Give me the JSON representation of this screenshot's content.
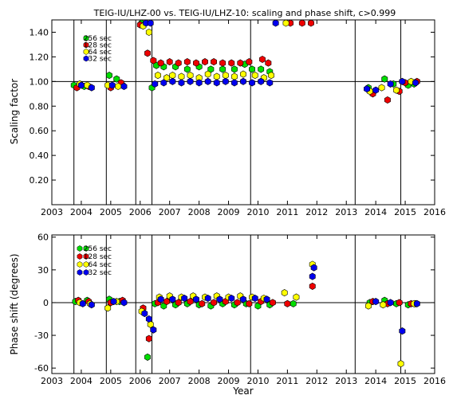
{
  "chart_data": [
    {
      "type": "scatter",
      "title": "TEIG-IU/LHZ-00 vs. TEIG-IU/LHZ-10: scaling and phase shift, c>0.999",
      "xlabel": "",
      "ylabel": "Scaling factor",
      "xlim": [
        2003.0,
        2016.0
      ],
      "ylim": [
        0.0,
        1.5
      ],
      "x_ticks": [
        2003,
        2004,
        2005,
        2006,
        2007,
        2008,
        2009,
        2010,
        2011,
        2012,
        2013,
        2014,
        2015,
        2016
      ],
      "y_ticks": [
        0.2,
        0.4,
        0.6,
        0.8,
        1.0,
        1.2,
        1.4
      ],
      "y_tick_labels": [
        "0.20",
        "0.40",
        "0.60",
        "0.80",
        "1.00",
        "1.20",
        "1.40"
      ],
      "reference_line": 1.0,
      "event_lines": [
        2003.75,
        2004.85,
        2005.85,
        2006.4,
        2009.75,
        2013.3,
        2014.85
      ],
      "legend_placement": "top-left",
      "series": [
        {
          "name": "256 sec",
          "color": "#00dd00",
          "points": [
            [
              2003.75,
              0.97
            ],
            [
              2004.1,
              0.96
            ],
            [
              2004.95,
              1.05
            ],
            [
              2005.2,
              1.02
            ],
            [
              2005.4,
              0.97
            ],
            [
              2006.05,
              1.5
            ],
            [
              2006.4,
              0.95
            ],
            [
              2006.55,
              1.13
            ],
            [
              2006.8,
              1.12
            ],
            [
              2007.2,
              1.12
            ],
            [
              2007.6,
              1.1
            ],
            [
              2008.0,
              1.12
            ],
            [
              2008.4,
              1.1
            ],
            [
              2008.8,
              1.1
            ],
            [
              2009.2,
              1.1
            ],
            [
              2009.55,
              1.14
            ],
            [
              2009.8,
              1.1
            ],
            [
              2010.1,
              1.1
            ],
            [
              2010.4,
              1.08
            ],
            [
              2013.75,
              0.95
            ],
            [
              2014.3,
              1.02
            ],
            [
              2014.6,
              0.98
            ],
            [
              2015.1,
              0.97
            ],
            [
              2015.3,
              0.98
            ]
          ]
        },
        {
          "name": "128 sec",
          "color": "#ee0000",
          "points": [
            [
              2003.85,
              0.95
            ],
            [
              2004.25,
              0.96
            ],
            [
              2005.0,
              0.95
            ],
            [
              2005.35,
              0.99
            ],
            [
              2006.0,
              1.46
            ],
            [
              2006.25,
              1.23
            ],
            [
              2006.45,
              1.17
            ],
            [
              2006.7,
              1.15
            ],
            [
              2007.0,
              1.16
            ],
            [
              2007.3,
              1.15
            ],
            [
              2007.6,
              1.16
            ],
            [
              2007.9,
              1.15
            ],
            [
              2008.2,
              1.16
            ],
            [
              2008.5,
              1.16
            ],
            [
              2008.8,
              1.15
            ],
            [
              2009.1,
              1.15
            ],
            [
              2009.4,
              1.15
            ],
            [
              2009.7,
              1.16
            ],
            [
              2010.15,
              1.18
            ],
            [
              2010.35,
              1.15
            ],
            [
              2011.1,
              1.5
            ],
            [
              2011.5,
              1.5
            ],
            [
              2011.8,
              1.5
            ],
            [
              2013.9,
              0.9
            ],
            [
              2014.4,
              0.85
            ],
            [
              2014.8,
              0.92
            ],
            [
              2015.0,
              0.99
            ],
            [
              2015.4,
              1.0
            ]
          ]
        },
        {
          "name": "64 sec",
          "color": "#ffff00",
          "points": [
            [
              2003.95,
              0.98
            ],
            [
              2004.2,
              0.97
            ],
            [
              2004.9,
              0.97
            ],
            [
              2005.25,
              0.96
            ],
            [
              2006.1,
              1.45
            ],
            [
              2006.3,
              1.4
            ],
            [
              2006.6,
              1.05
            ],
            [
              2006.9,
              1.03
            ],
            [
              2007.1,
              1.05
            ],
            [
              2007.4,
              1.04
            ],
            [
              2007.7,
              1.05
            ],
            [
              2008.0,
              1.03
            ],
            [
              2008.3,
              1.06
            ],
            [
              2008.6,
              1.04
            ],
            [
              2008.9,
              1.05
            ],
            [
              2009.2,
              1.04
            ],
            [
              2009.5,
              1.06
            ],
            [
              2009.9,
              1.05
            ],
            [
              2010.2,
              1.03
            ],
            [
              2010.45,
              1.05
            ],
            [
              2010.95,
              1.5
            ],
            [
              2013.8,
              0.92
            ],
            [
              2014.2,
              0.95
            ],
            [
              2014.7,
              0.93
            ],
            [
              2015.2,
              1.0
            ]
          ]
        },
        {
          "name": "32 sec",
          "color": "#0000ee",
          "points": [
            [
              2004.0,
              0.97
            ],
            [
              2004.35,
              0.95
            ],
            [
              2005.05,
              0.97
            ],
            [
              2005.45,
              0.96
            ],
            [
              2006.2,
              1.5
            ],
            [
              2006.35,
              1.5
            ],
            [
              2006.5,
              0.98
            ],
            [
              2006.8,
              0.99
            ],
            [
              2007.1,
              1.0
            ],
            [
              2007.4,
              0.99
            ],
            [
              2007.7,
              1.0
            ],
            [
              2008.0,
              0.99
            ],
            [
              2008.3,
              1.0
            ],
            [
              2008.6,
              0.99
            ],
            [
              2008.9,
              1.0
            ],
            [
              2009.2,
              0.99
            ],
            [
              2009.5,
              1.0
            ],
            [
              2009.8,
              0.99
            ],
            [
              2010.1,
              1.0
            ],
            [
              2010.4,
              0.99
            ],
            [
              2010.6,
              1.5
            ],
            [
              2013.7,
              0.94
            ],
            [
              2014.0,
              0.93
            ],
            [
              2014.5,
              0.98
            ],
            [
              2014.9,
              1.0
            ],
            [
              2015.35,
              0.99
            ]
          ]
        }
      ]
    },
    {
      "type": "scatter",
      "title": "",
      "xlabel": "Year",
      "ylabel": "Phase shift (degrees)",
      "xlim": [
        2003.0,
        2016.0
      ],
      "ylim": [
        -65,
        62
      ],
      "x_ticks": [
        2003,
        2004,
        2005,
        2006,
        2007,
        2008,
        2009,
        2010,
        2011,
        2012,
        2013,
        2014,
        2015,
        2016
      ],
      "y_ticks": [
        -60,
        -30,
        0,
        30,
        60
      ],
      "y_tick_labels": [
        "-60",
        "-30",
        "0",
        "30",
        "60"
      ],
      "reference_line": 0,
      "event_lines": [
        2003.75,
        2004.85,
        2005.85,
        2006.4,
        2009.75,
        2013.3,
        2014.85
      ],
      "legend_placement": "top-left",
      "series": [
        {
          "name": "256 sec",
          "color": "#00dd00",
          "points": [
            [
              2003.8,
              1
            ],
            [
              2004.2,
              2
            ],
            [
              2004.95,
              3
            ],
            [
              2005.3,
              1
            ],
            [
              2006.25,
              -50
            ],
            [
              2006.5,
              -1
            ],
            [
              2006.8,
              -3
            ],
            [
              2007.2,
              -2
            ],
            [
              2007.6,
              -1
            ],
            [
              2008.0,
              -2
            ],
            [
              2008.4,
              -3
            ],
            [
              2008.8,
              -1
            ],
            [
              2009.2,
              -2
            ],
            [
              2009.6,
              -1
            ],
            [
              2010.0,
              -3
            ],
            [
              2010.4,
              -2
            ],
            [
              2011.2,
              -1
            ],
            [
              2013.8,
              0
            ],
            [
              2014.3,
              2
            ],
            [
              2014.7,
              -1
            ],
            [
              2015.1,
              -2
            ],
            [
              2015.35,
              -1
            ]
          ]
        },
        {
          "name": "128 sec",
          "color": "#ee0000",
          "points": [
            [
              2003.9,
              2
            ],
            [
              2004.25,
              1
            ],
            [
              2005.0,
              0
            ],
            [
              2005.4,
              2
            ],
            [
              2006.1,
              -5
            ],
            [
              2006.3,
              -33
            ],
            [
              2006.6,
              0
            ],
            [
              2006.9,
              1
            ],
            [
              2007.3,
              0
            ],
            [
              2007.7,
              1
            ],
            [
              2008.1,
              -1
            ],
            [
              2008.5,
              0
            ],
            [
              2008.9,
              1
            ],
            [
              2009.3,
              0
            ],
            [
              2009.7,
              -1
            ],
            [
              2010.1,
              1
            ],
            [
              2010.5,
              0
            ],
            [
              2011.0,
              -1
            ],
            [
              2011.85,
              15
            ],
            [
              2013.9,
              1
            ],
            [
              2014.4,
              -1
            ],
            [
              2014.8,
              0
            ],
            [
              2015.2,
              -1
            ]
          ]
        },
        {
          "name": "64 sec",
          "color": "#ffff00",
          "points": [
            [
              2003.95,
              0
            ],
            [
              2004.3,
              -1
            ],
            [
              2004.9,
              -5
            ],
            [
              2005.2,
              1
            ],
            [
              2006.05,
              -8
            ],
            [
              2006.35,
              -20
            ],
            [
              2006.65,
              5
            ],
            [
              2007.0,
              6
            ],
            [
              2007.4,
              5
            ],
            [
              2007.8,
              6
            ],
            [
              2008.2,
              5
            ],
            [
              2008.6,
              6
            ],
            [
              2009.0,
              5
            ],
            [
              2009.4,
              6
            ],
            [
              2009.8,
              5
            ],
            [
              2010.2,
              4
            ],
            [
              2010.9,
              9
            ],
            [
              2011.3,
              5
            ],
            [
              2011.85,
              35
            ],
            [
              2013.75,
              -3
            ],
            [
              2014.25,
              -2
            ],
            [
              2014.85,
              -56
            ],
            [
              2015.3,
              -1
            ]
          ]
        },
        {
          "name": "32 sec",
          "color": "#0000ee",
          "points": [
            [
              2004.05,
              -1
            ],
            [
              2004.35,
              -2
            ],
            [
              2005.1,
              1
            ],
            [
              2005.45,
              0
            ],
            [
              2006.15,
              -10
            ],
            [
              2006.3,
              -15
            ],
            [
              2006.45,
              -25
            ],
            [
              2006.7,
              3
            ],
            [
              2007.1,
              3
            ],
            [
              2007.5,
              4
            ],
            [
              2007.9,
              3
            ],
            [
              2008.3,
              4
            ],
            [
              2008.7,
              3
            ],
            [
              2009.1,
              4
            ],
            [
              2009.5,
              3
            ],
            [
              2009.9,
              4
            ],
            [
              2010.3,
              3
            ],
            [
              2011.85,
              24
            ],
            [
              2011.9,
              32
            ],
            [
              2014.0,
              1
            ],
            [
              2014.5,
              0
            ],
            [
              2014.9,
              -26
            ],
            [
              2015.4,
              -1
            ]
          ]
        }
      ]
    }
  ]
}
